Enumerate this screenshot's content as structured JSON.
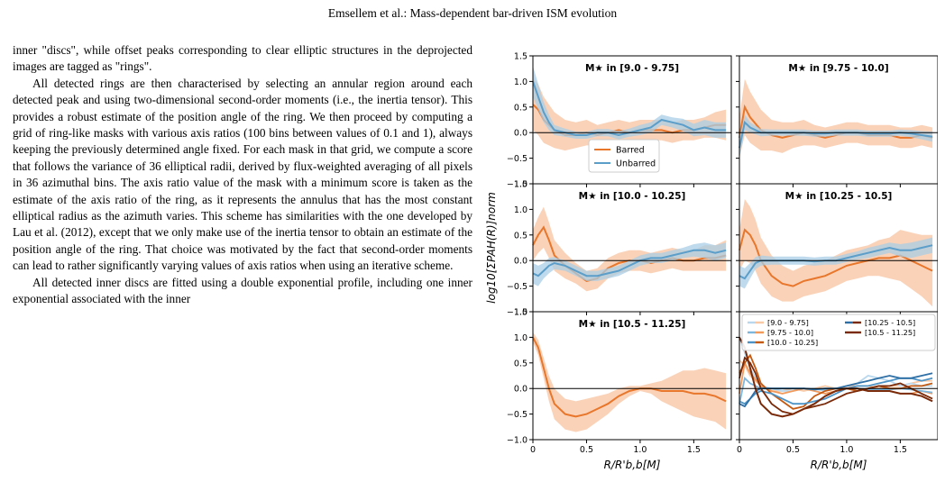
{
  "header": "Emsellem et al.: Mass-dependent bar-driven ISM evolution",
  "paragraphs": [
    {
      "indent": false,
      "text": "inner \"discs\", while offset peaks corresponding to clear elliptic structures in the deprojected images are tagged as \"rings\"."
    },
    {
      "indent": true,
      "text": "All detected rings are then characterised by selecting an annular region around each detected peak and using two-dimensional second-order moments (i.e., the inertia tensor). This provides a robust estimate of the position angle of the ring. We then proceed by computing a grid of ring-like masks with various axis ratios (100 bins between values of 0.1 and 1), always keeping the previously determined angle fixed. For each mask in that grid, we compute a score that follows the variance of 36 elliptical radii, derived by flux-weighted averaging of all pixels in 36 azimuthal bins. The axis ratio value of the mask with a minimum score is taken as the estimate of the axis ratio of the ring, as it represents the annulus that has the most constant elliptical radius as the azimuth varies. This scheme has similarities with the one developed by Lau et al. (2012), except that we only make use of the inertia tensor to obtain an estimate of the position angle of the ring. That choice was motivated by the fact that second-order moments can lead to rather significantly varying values of axis ratios when using an iterative scheme."
    },
    {
      "indent": true,
      "text": "All detected inner discs are fitted using a double exponential profile, including one inner exponential associated with the inner"
    }
  ],
  "figure": {
    "ylabel": "log10[ΣPAH(R)]norm",
    "xlabel": "R/R'b,b[M]",
    "xticks": [
      "0",
      "0.5",
      "1.0",
      "1.5"
    ],
    "yticks": [
      "−1.0",
      "−0.5",
      "0.0",
      "0.5",
      "1.0",
      "1.5"
    ],
    "panel_titles": [
      "M★ in [9.0 - 9.75]",
      "M★ in [9.75 - 10.0]",
      "M★ in [10.0 - 10.25]",
      "M★ in [10.25 - 10.5]",
      "M★ in [10.5 - 11.25]"
    ],
    "legend_main": [
      "Barred",
      "Unbarred"
    ],
    "legend_bins": [
      "[9.0 - 9.75]",
      "[9.75 - 10.0]",
      "[10.0 - 10.25]",
      "[10.25 - 10.5]",
      "[10.5 - 11.25]"
    ],
    "colors": {
      "barred": "#e8762b",
      "barred_band": "#f8c3a0",
      "unbarred": "#5b9ec9",
      "unbarred_band": "#a9cde6",
      "bins_barred": [
        "#f9c9a5",
        "#f29a5c",
        "#c45a12",
        "#7a2a08"
      ],
      "bins_unbarred": [
        "#b9d8ee",
        "#7db7de",
        "#4d93c5",
        "#2e6fa5"
      ]
    }
  },
  "chart_data": {
    "type": "line",
    "xlabel": "R/R'b,b[M]",
    "ylabel": "log10[ΣPAH(R)]norm",
    "xlim": [
      0,
      1.85
    ],
    "ylim": [
      -1.0,
      1.5
    ],
    "panels": [
      {
        "title": "M★ in [9.0 - 9.75]",
        "barred": {
          "x": [
            0,
            0.05,
            0.1,
            0.15,
            0.2,
            0.3,
            0.4,
            0.5,
            0.6,
            0.7,
            0.8,
            0.9,
            1.0,
            1.1,
            1.2,
            1.3,
            1.4,
            1.5,
            1.6,
            1.7,
            1.8
          ],
          "y": [
            0.55,
            0.45,
            0.25,
            0.15,
            0.05,
            -0.05,
            -0.05,
            0.0,
            -0.05,
            0.0,
            0.05,
            0.0,
            0.05,
            0.05,
            0.05,
            0.0,
            0.05,
            0.05,
            0.1,
            0.15,
            0.15
          ],
          "band": [
            0.5,
            0.5,
            0.45,
            0.4,
            0.35,
            0.3,
            0.25,
            0.25,
            0.2,
            0.2,
            0.2,
            0.2,
            0.2,
            0.2,
            0.2,
            0.2,
            0.2,
            0.2,
            0.2,
            0.25,
            0.3
          ]
        },
        "unbarred": {
          "x": [
            0,
            0.05,
            0.1,
            0.15,
            0.2,
            0.3,
            0.4,
            0.5,
            0.6,
            0.7,
            0.8,
            0.9,
            1.0,
            1.1,
            1.2,
            1.3,
            1.4,
            1.5,
            1.6,
            1.7,
            1.8
          ],
          "y": [
            1.0,
            0.7,
            0.4,
            0.2,
            0.05,
            0.0,
            -0.05,
            -0.05,
            0.0,
            0.0,
            -0.05,
            0.0,
            0.05,
            0.1,
            0.25,
            0.2,
            0.15,
            0.05,
            0.1,
            0.05,
            0.05
          ],
          "band": [
            0.3,
            0.25,
            0.2,
            0.15,
            0.1,
            0.08,
            0.07,
            0.07,
            0.07,
            0.07,
            0.08,
            0.08,
            0.1,
            0.1,
            0.1,
            0.1,
            0.12,
            0.12,
            0.15,
            0.15,
            0.15
          ]
        }
      },
      {
        "title": "M★ in [9.75 - 10.0]",
        "barred": {
          "x": [
            0,
            0.05,
            0.1,
            0.2,
            0.3,
            0.4,
            0.5,
            0.6,
            0.7,
            0.8,
            0.9,
            1.0,
            1.1,
            1.2,
            1.3,
            1.4,
            1.5,
            1.6,
            1.7,
            1.8
          ],
          "y": [
            -0.1,
            0.5,
            0.3,
            0.05,
            -0.05,
            -0.1,
            -0.05,
            0.0,
            -0.05,
            -0.1,
            -0.05,
            0.0,
            0.0,
            -0.05,
            -0.05,
            -0.05,
            -0.1,
            -0.1,
            -0.05,
            -0.1
          ],
          "band": [
            0.4,
            0.55,
            0.5,
            0.4,
            0.3,
            0.3,
            0.25,
            0.25,
            0.2,
            0.2,
            0.2,
            0.2,
            0.2,
            0.2,
            0.2,
            0.2,
            0.2,
            0.2,
            0.2,
            0.2
          ]
        },
        "unbarred": {
          "x": [
            0,
            0.05,
            0.1,
            0.2,
            0.3,
            0.4,
            0.5,
            0.6,
            0.7,
            0.8,
            0.9,
            1.0,
            1.1,
            1.2,
            1.3,
            1.4,
            1.5,
            1.6,
            1.7,
            1.8
          ],
          "y": [
            -0.3,
            0.2,
            0.1,
            0.0,
            0.0,
            0.0,
            0.0,
            0.0,
            -0.02,
            -0.02,
            0.0,
            0.0,
            0.0,
            -0.02,
            -0.02,
            -0.02,
            0.0,
            -0.02,
            -0.05,
            -0.08
          ],
          "band": [
            0.2,
            0.15,
            0.1,
            0.07,
            0.06,
            0.06,
            0.06,
            0.06,
            0.06,
            0.06,
            0.06,
            0.06,
            0.06,
            0.06,
            0.06,
            0.06,
            0.06,
            0.07,
            0.08,
            0.1
          ]
        }
      },
      {
        "title": "M★ in [10.0 - 10.25]",
        "barred": {
          "x": [
            0,
            0.05,
            0.1,
            0.15,
            0.2,
            0.3,
            0.4,
            0.5,
            0.6,
            0.7,
            0.8,
            0.9,
            1.0,
            1.1,
            1.2,
            1.3,
            1.4,
            1.5,
            1.6,
            1.7,
            1.8
          ],
          "y": [
            0.3,
            0.5,
            0.65,
            0.4,
            0.1,
            -0.1,
            -0.25,
            -0.4,
            -0.35,
            -0.15,
            -0.05,
            0.0,
            0.0,
            -0.05,
            0.0,
            0.05,
            0.0,
            0.0,
            0.05,
            0.05,
            0.1
          ],
          "band": [
            0.3,
            0.35,
            0.4,
            0.35,
            0.3,
            0.25,
            0.2,
            0.2,
            0.2,
            0.2,
            0.2,
            0.2,
            0.2,
            0.2,
            0.2,
            0.2,
            0.2,
            0.2,
            0.25,
            0.25,
            0.3
          ]
        },
        "unbarred": {
          "x": [
            0,
            0.05,
            0.1,
            0.15,
            0.2,
            0.3,
            0.4,
            0.5,
            0.6,
            0.7,
            0.8,
            0.9,
            1.0,
            1.1,
            1.2,
            1.3,
            1.4,
            1.5,
            1.6,
            1.7,
            1.8
          ],
          "y": [
            -0.25,
            -0.3,
            -0.2,
            -0.1,
            -0.05,
            -0.1,
            -0.2,
            -0.3,
            -0.3,
            -0.25,
            -0.2,
            -0.1,
            0.0,
            0.05,
            0.05,
            0.1,
            0.15,
            0.2,
            0.2,
            0.15,
            0.2
          ],
          "band": [
            0.2,
            0.2,
            0.15,
            0.15,
            0.12,
            0.1,
            0.1,
            0.1,
            0.1,
            0.1,
            0.1,
            0.1,
            0.1,
            0.1,
            0.1,
            0.1,
            0.1,
            0.12,
            0.15,
            0.15,
            0.15
          ]
        }
      },
      {
        "title": "M★ in [10.25 - 10.5]",
        "barred": {
          "x": [
            0,
            0.05,
            0.1,
            0.15,
            0.2,
            0.3,
            0.4,
            0.5,
            0.6,
            0.7,
            0.8,
            0.9,
            1.0,
            1.1,
            1.2,
            1.3,
            1.4,
            1.5,
            1.6,
            1.7,
            1.8
          ],
          "y": [
            0.2,
            0.6,
            0.5,
            0.3,
            0.0,
            -0.3,
            -0.45,
            -0.5,
            -0.4,
            -0.35,
            -0.3,
            -0.2,
            -0.1,
            -0.05,
            0.0,
            0.05,
            0.05,
            0.1,
            0.0,
            -0.1,
            -0.2
          ],
          "band": [
            0.4,
            0.6,
            0.55,
            0.5,
            0.45,
            0.4,
            0.35,
            0.3,
            0.3,
            0.3,
            0.3,
            0.3,
            0.3,
            0.3,
            0.3,
            0.35,
            0.4,
            0.5,
            0.55,
            0.6,
            0.7
          ]
        },
        "unbarred": {
          "x": [
            0,
            0.05,
            0.1,
            0.15,
            0.2,
            0.3,
            0.4,
            0.5,
            0.6,
            0.7,
            0.8,
            0.9,
            1.0,
            1.1,
            1.2,
            1.3,
            1.4,
            1.5,
            1.6,
            1.7,
            1.8
          ],
          "y": [
            -0.3,
            -0.35,
            -0.2,
            -0.05,
            0.0,
            0.0,
            0.0,
            0.0,
            0.0,
            -0.02,
            0.0,
            0.0,
            0.05,
            0.1,
            0.15,
            0.2,
            0.25,
            0.2,
            0.2,
            0.25,
            0.3
          ],
          "band": [
            0.2,
            0.2,
            0.15,
            0.12,
            0.1,
            0.08,
            0.08,
            0.08,
            0.08,
            0.08,
            0.08,
            0.08,
            0.08,
            0.08,
            0.1,
            0.1,
            0.1,
            0.12,
            0.15,
            0.15,
            0.15
          ]
        }
      },
      {
        "title": "M★ in [10.5 - 11.25]",
        "barred": {
          "x": [
            0,
            0.05,
            0.1,
            0.15,
            0.2,
            0.3,
            0.4,
            0.5,
            0.6,
            0.7,
            0.8,
            0.9,
            1.0,
            1.1,
            1.2,
            1.3,
            1.4,
            1.5,
            1.6,
            1.7,
            1.8
          ],
          "y": [
            1.0,
            0.8,
            0.4,
            0.0,
            -0.3,
            -0.5,
            -0.55,
            -0.5,
            -0.4,
            -0.3,
            -0.15,
            -0.05,
            0.0,
            0.0,
            -0.05,
            -0.05,
            -0.05,
            -0.1,
            -0.1,
            -0.15,
            -0.25
          ],
          "band": [
            0.1,
            0.15,
            0.2,
            0.25,
            0.3,
            0.3,
            0.3,
            0.3,
            0.25,
            0.2,
            0.15,
            0.1,
            0.05,
            0.1,
            0.2,
            0.3,
            0.4,
            0.45,
            0.5,
            0.5,
            0.55
          ]
        },
        "unbarred": null
      }
    ],
    "summary_panel": {
      "legend": [
        "[9.0 - 9.75]",
        "[9.75 - 10.0]",
        "[10.0 - 10.25]",
        "[10.25 - 10.5]",
        "[10.5 - 11.25]"
      ]
    }
  }
}
